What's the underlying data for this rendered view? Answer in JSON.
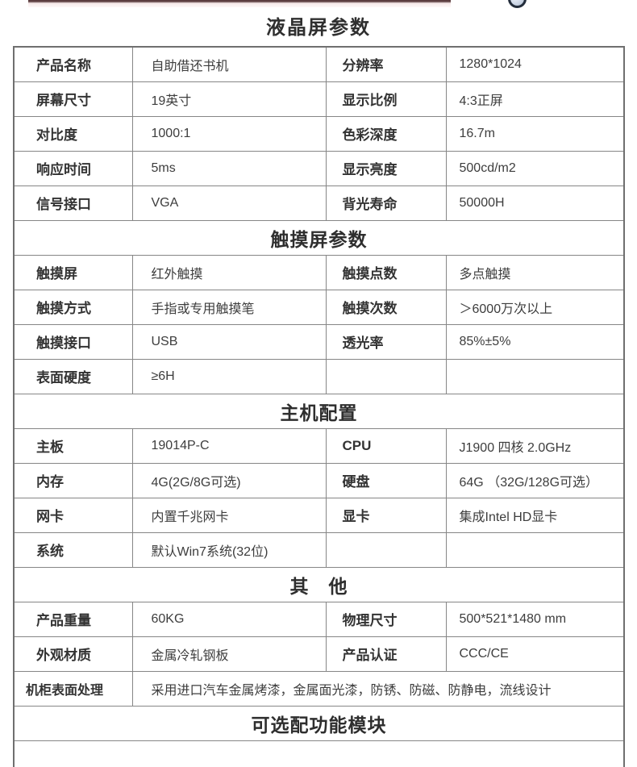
{
  "page_title": "液晶屏参数",
  "decor": {
    "banner_edge_color": "#4a282b",
    "banner_tint_color": "#f6e8e8",
    "logo_ring_color": "#232d3b"
  },
  "table": {
    "rows": [
      {
        "type": "data",
        "cells": [
          "产品名称",
          "自助借还书机",
          "分辨率",
          "1280*1024"
        ]
      },
      {
        "type": "data",
        "cells": [
          "屏幕尺寸",
          "19英寸",
          "显示比例",
          "4:3正屏"
        ]
      },
      {
        "type": "data",
        "cells": [
          "对比度",
          "1000:1",
          "色彩深度",
          "16.7m"
        ]
      },
      {
        "type": "data",
        "cells": [
          "响应时间",
          "5ms",
          "显示亮度",
          "500cd/m2"
        ]
      },
      {
        "type": "data",
        "cells": [
          "信号接口",
          "VGA",
          "背光寿命",
          "50000H"
        ]
      },
      {
        "type": "header",
        "text": "触摸屏参数"
      },
      {
        "type": "data",
        "cells": [
          "触摸屏",
          "红外触摸",
          "触摸点数",
          "多点触摸"
        ]
      },
      {
        "type": "data",
        "cells": [
          "触摸方式",
          "手指或专用触摸笔",
          "触摸次数",
          "＞6000万次以上"
        ]
      },
      {
        "type": "data",
        "cells": [
          "触摸接口",
          "USB",
          "透光率",
          "85%±5%"
        ]
      },
      {
        "type": "data",
        "cells": [
          "表面硬度",
          "≥6H",
          "",
          ""
        ]
      },
      {
        "type": "header",
        "text": "主机配置"
      },
      {
        "type": "data",
        "cells": [
          "主板",
          "19014P-C",
          "CPU",
          "J1900 四核 2.0GHz"
        ]
      },
      {
        "type": "data",
        "cells": [
          "内存",
          "4G(2G/8G可选)",
          "硬盘",
          "64G （32G/128G可选）"
        ]
      },
      {
        "type": "data",
        "cells": [
          "网卡",
          "内置千兆网卡",
          "显卡",
          "集成Intel HD显卡"
        ]
      },
      {
        "type": "data",
        "cells": [
          "系统",
          "默认Win7系统(32位)",
          "",
          ""
        ]
      },
      {
        "type": "header",
        "text": "其　他"
      },
      {
        "type": "data",
        "cells": [
          "产品重量",
          "60KG",
          "物理尺寸",
          "500*521*1480 mm"
        ]
      },
      {
        "type": "data",
        "cells": [
          "外观材质",
          "金属冷轧钢板",
          "产品认证",
          "CCC/CE"
        ]
      },
      {
        "type": "span",
        "label": "机柜表面处理",
        "value": "采用进口汽车金属烤漆，金属面光漆，防锈、防磁、防静电，流线设计"
      },
      {
        "type": "header",
        "text": "可选配功能模块"
      },
      {
        "type": "partial"
      }
    ]
  }
}
